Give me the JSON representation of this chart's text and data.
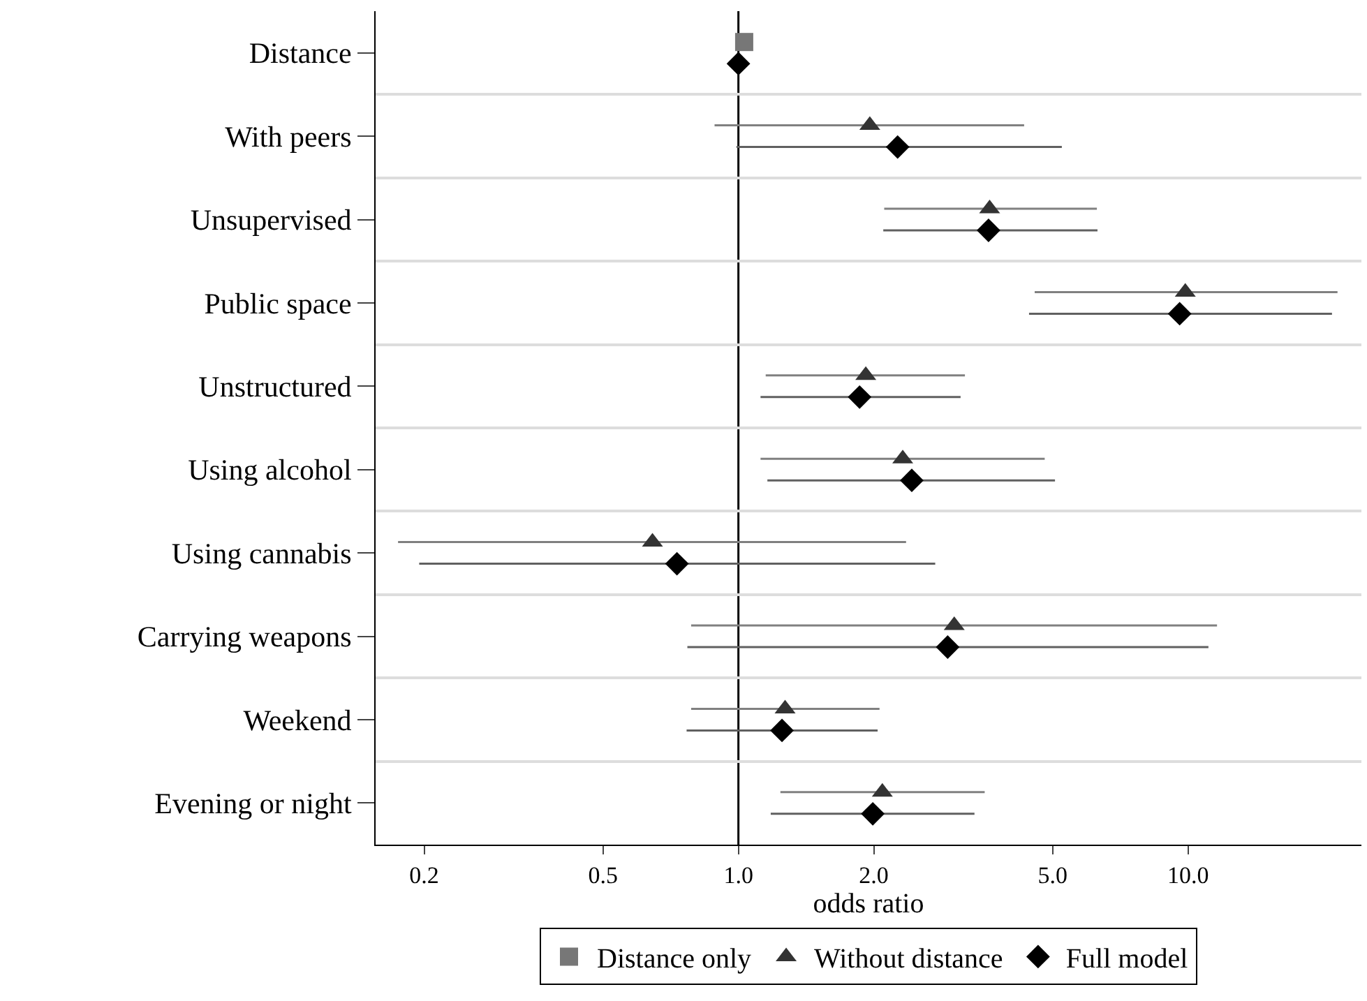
{
  "chart_data": {
    "type": "scatter",
    "orientation": "horizontal",
    "xlabel": "odds ratio",
    "log": "x",
    "categories": [
      "Distance",
      "With peers",
      "Unsupervised",
      "Public space",
      "Unstructured",
      "Using alcohol",
      "Using cannabis",
      "Carrying weapons",
      "Weekend",
      "Evening or night"
    ],
    "xlim": [
      0.156,
      24.3
    ],
    "xticks": [
      0.2,
      0.5,
      {
        "value": 1,
        "label": "1.0"
      },
      {
        "value": 2,
        "label": "2.0"
      },
      {
        "value": 5,
        "label": "5.0"
      },
      {
        "value": 10,
        "label": "10.0"
      }
    ],
    "grid": "y",
    "legend": "bottom",
    "ref_lines": [
      {
        "axis": "x",
        "value": 1,
        "color": "#000000"
      }
    ],
    "series": [
      {
        "name": "Distance only",
        "color": "#777777",
        "marker": "square",
        "values": [
          1.03,
          null,
          null,
          null,
          null,
          null,
          null,
          null,
          null,
          null
        ]
      },
      {
        "name": "Without distance",
        "color": "#333333",
        "marker": "triangle",
        "values": [
          null,
          1.96,
          3.62,
          9.86,
          1.92,
          2.32,
          0.644,
          3.02,
          1.27,
          2.09
        ],
        "errors": [
          null,
          [
            0.885,
            4.32
          ],
          [
            2.11,
            6.27
          ],
          [
            4.56,
            21.5
          ],
          [
            1.15,
            3.19
          ],
          [
            1.12,
            4.8
          ],
          [
            0.175,
            2.36
          ],
          [
            0.785,
            11.6
          ],
          [
            0.785,
            2.06
          ],
          [
            1.24,
            3.53
          ]
        ]
      },
      {
        "name": "Full model",
        "color": "#000000",
        "marker": "diamond",
        "values": [
          1.0,
          2.26,
          3.6,
          9.58,
          1.86,
          2.43,
          0.73,
          2.92,
          1.25,
          1.99
        ],
        "errors": [
          null,
          [
            0.99,
            5.24
          ],
          [
            2.1,
            6.29
          ],
          [
            4.43,
            20.9
          ],
          [
            1.12,
            3.12
          ],
          [
            1.16,
            5.06
          ],
          [
            0.195,
            2.74
          ],
          [
            0.77,
            11.1
          ],
          [
            0.767,
            2.04
          ],
          [
            1.18,
            3.35
          ]
        ]
      }
    ]
  }
}
